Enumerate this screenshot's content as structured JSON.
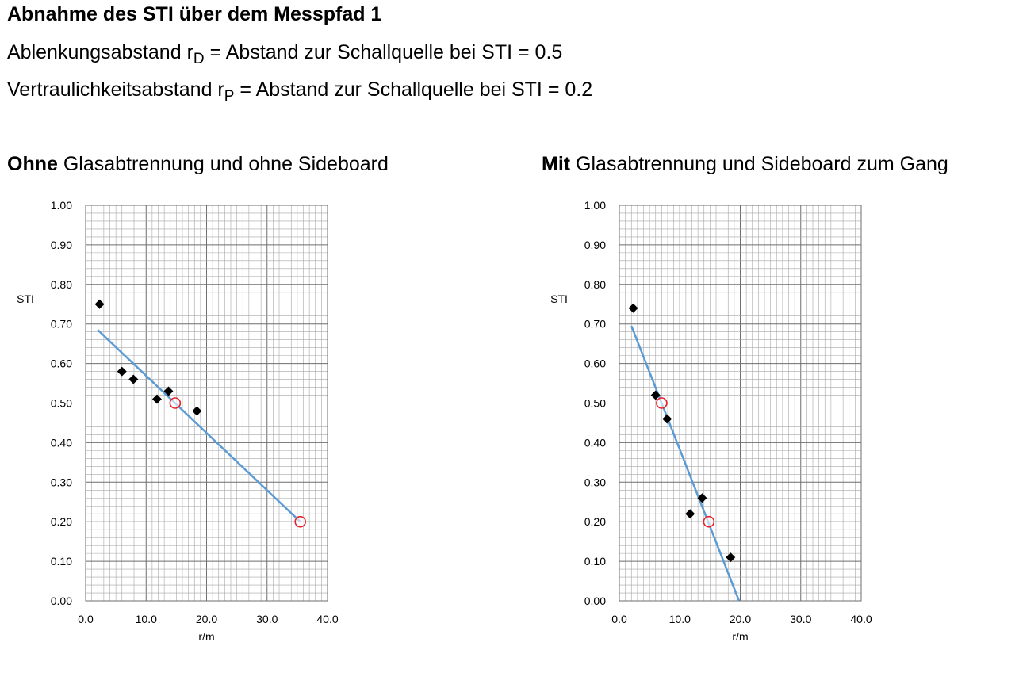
{
  "header": {
    "title": "Abnahme des STI über dem Messpfad 1",
    "def_d": {
      "pre": "Ablenkungsabstand r",
      "sub": "D",
      "post": " = Abstand zur Schallquelle bei STI = 0.5"
    },
    "def_p": {
      "pre": "Vertraulichkeitsabstand r",
      "sub": "P",
      "post": " = Abstand zur Schallquelle bei STI = 0.2"
    }
  },
  "charts": [
    {
      "title_bold": "Ohne",
      "title_rest": " Glasabtrennung und ohne Sideboard"
    },
    {
      "title_bold": "Mit",
      "title_rest": " Glasabtrennung und Sideboard zum Gang"
    }
  ],
  "chart_data": [
    {
      "type": "scatter",
      "title": "Ohne Glasabtrennung und ohne Sideboard",
      "xlabel": "r/m",
      "ylabel": "STI",
      "xlim": [
        0,
        40
      ],
      "ylim": [
        0,
        1
      ],
      "xticks": [
        "0.0",
        "10.0",
        "20.0",
        "30.0",
        "40.0"
      ],
      "yticks": [
        "0.00",
        "0.10",
        "0.20",
        "0.30",
        "0.40",
        "0.50",
        "0.60",
        "0.70",
        "0.80",
        "0.90",
        "1.00"
      ],
      "grid": true,
      "points": [
        {
          "x": 2.3,
          "y": 0.75
        },
        {
          "x": 6.0,
          "y": 0.58
        },
        {
          "x": 7.9,
          "y": 0.56
        },
        {
          "x": 11.8,
          "y": 0.51
        },
        {
          "x": 13.7,
          "y": 0.53
        },
        {
          "x": 18.4,
          "y": 0.48
        }
      ],
      "trend_line": [
        {
          "x": 2.0,
          "y": 0.685
        },
        {
          "x": 35.5,
          "y": 0.2
        }
      ],
      "markers": [
        {
          "x": 14.8,
          "y": 0.5
        },
        {
          "x": 35.5,
          "y": 0.2
        }
      ],
      "colors": {
        "points": "#000000",
        "line": "#5b9bd5",
        "markers": "#e8202a",
        "grid": "#a6a6a6"
      }
    },
    {
      "type": "scatter",
      "title": "Mit Glasabtrennung und Sideboard zum Gang",
      "xlabel": "r/m",
      "ylabel": "STI",
      "xlim": [
        0,
        40
      ],
      "ylim": [
        0,
        1
      ],
      "xticks": [
        "0.0",
        "10.0",
        "20.0",
        "30.0",
        "40.0"
      ],
      "yticks": [
        "0.00",
        "0.10",
        "0.20",
        "0.30",
        "0.40",
        "0.50",
        "0.60",
        "0.70",
        "0.80",
        "0.90",
        "1.00"
      ],
      "grid": true,
      "points": [
        {
          "x": 2.3,
          "y": 0.74
        },
        {
          "x": 6.0,
          "y": 0.52
        },
        {
          "x": 7.9,
          "y": 0.46
        },
        {
          "x": 11.7,
          "y": 0.22
        },
        {
          "x": 13.7,
          "y": 0.26
        },
        {
          "x": 18.4,
          "y": 0.11
        }
      ],
      "trend_line": [
        {
          "x": 2.0,
          "y": 0.695
        },
        {
          "x": 19.8,
          "y": 0.0
        }
      ],
      "markers": [
        {
          "x": 7.0,
          "y": 0.5
        },
        {
          "x": 14.8,
          "y": 0.2
        }
      ],
      "colors": {
        "points": "#000000",
        "line": "#5b9bd5",
        "markers": "#e8202a",
        "grid": "#a6a6a6"
      }
    }
  ]
}
